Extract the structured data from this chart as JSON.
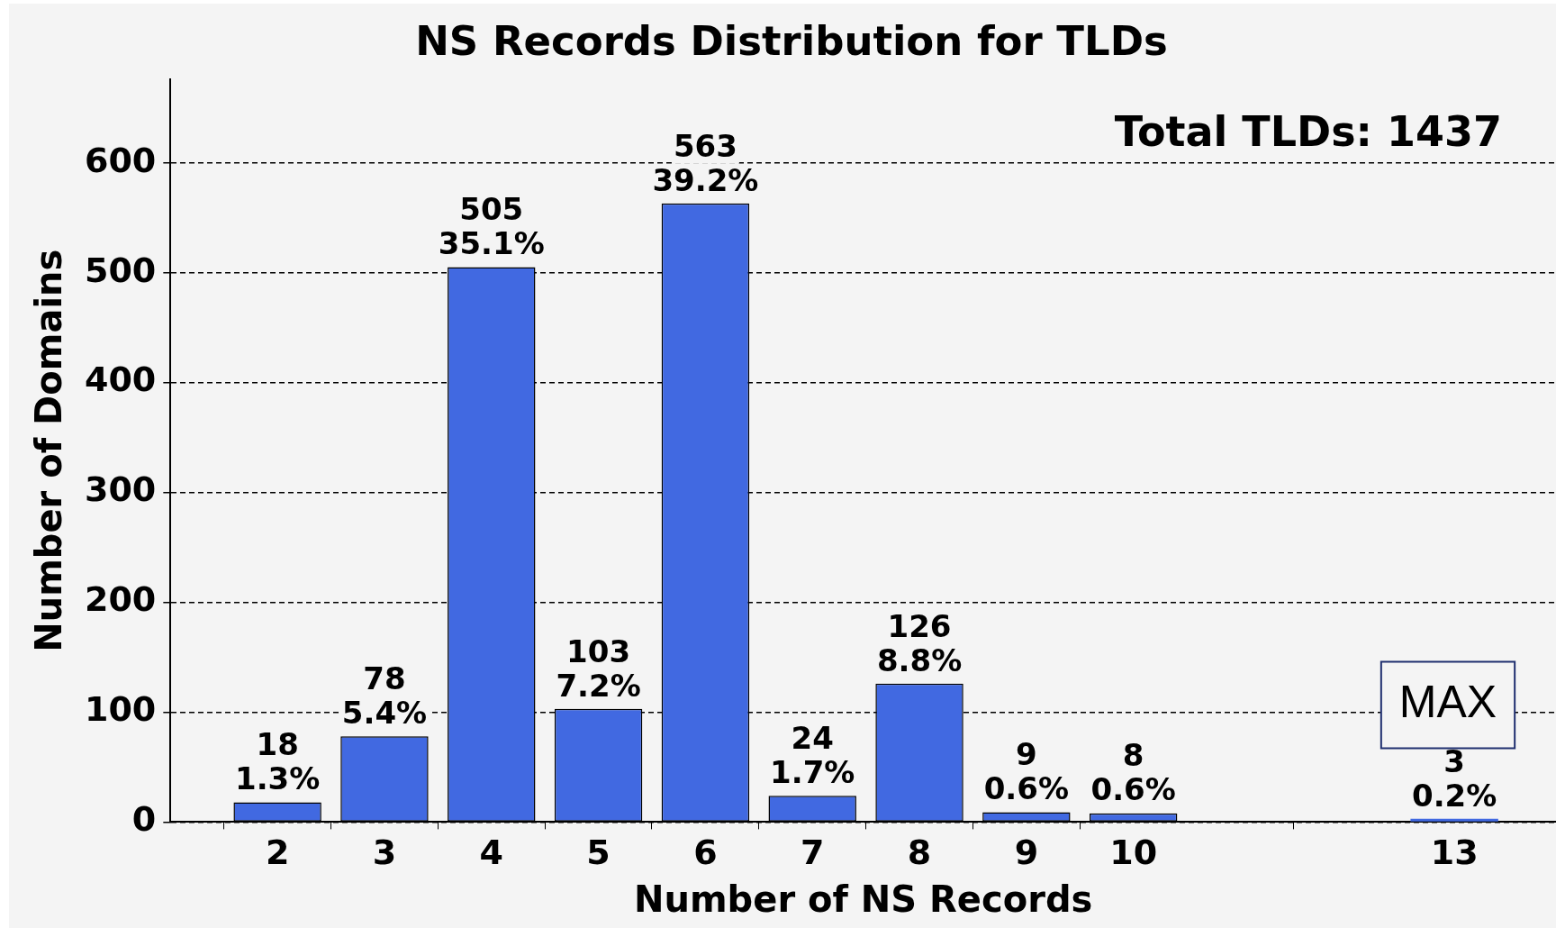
{
  "chart_data": {
    "type": "bar",
    "title": "NS Records Distribution for TLDs",
    "xlabel": "Number of NS Records",
    "ylabel": "Number of Domains",
    "x": [
      2,
      3,
      4,
      5,
      6,
      7,
      8,
      9,
      10,
      13
    ],
    "values": [
      18,
      78,
      505,
      103,
      563,
      24,
      126,
      9,
      8,
      3
    ],
    "value_labels": [
      "18\n1.3%",
      "78\n5.4%",
      "505\n35.1%",
      "103\n7.2%",
      "563\n39.2%",
      "24\n1.7%",
      "126\n8.8%",
      "9\n0.6%",
      "8\n0.6%",
      "3\n0.2%"
    ],
    "color": "#4169e1",
    "xlim": [
      1,
      13.95
    ],
    "xticks": [
      2,
      3,
      4,
      5,
      6,
      7,
      8,
      9,
      10,
      13
    ],
    "ylim": [
      0,
      676
    ],
    "yticks": [
      0,
      100,
      200,
      300,
      400,
      500,
      600
    ],
    "grid": "y",
    "legend": false,
    "annotations": [
      "Total TLDs: 1437",
      "MAX"
    ]
  }
}
